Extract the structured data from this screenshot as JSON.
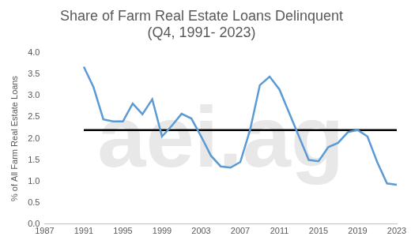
{
  "chart_data": {
    "type": "line",
    "title": "Share of Farm Real Estate Loans Delinquent",
    "subtitle": "(Q4, 1991- 2023)",
    "y_label": "% of All Farm Real Estate Loans",
    "annotations": [
      "aei.ag"
    ],
    "x": [
      1991,
      1992,
      1993,
      1994,
      1995,
      1996,
      1997,
      1998,
      1999,
      2000,
      2001,
      2002,
      2003,
      2004,
      2005,
      2006,
      2007,
      2008,
      2009,
      2010,
      2011,
      2012,
      2013,
      2014,
      2015,
      2016,
      2017,
      2018,
      2019,
      2020,
      2021,
      2022,
      2023
    ],
    "series": [
      {
        "color": "#5b9bd5",
        "line_style": "solid",
        "values": [
          3.68,
          3.2,
          2.45,
          2.4,
          2.4,
          2.82,
          2.57,
          2.92,
          2.05,
          2.3,
          2.58,
          2.47,
          2.05,
          1.6,
          1.35,
          1.32,
          1.45,
          2.2,
          3.25,
          3.45,
          3.15,
          2.6,
          2.05,
          1.5,
          1.47,
          1.8,
          1.9,
          2.15,
          2.2,
          2.05,
          1.45,
          0.95,
          0.92
        ]
      },
      {
        "color": "#000000",
        "line_style": "solid",
        "values": [
          2.2,
          2.2,
          2.2,
          2.2,
          2.2,
          2.2,
          2.2,
          2.2,
          2.2,
          2.2,
          2.2,
          2.2,
          2.2,
          2.2,
          2.2,
          2.2,
          2.2,
          2.2,
          2.2,
          2.2,
          2.2,
          2.2,
          2.2,
          2.2,
          2.2,
          2.2,
          2.2,
          2.2,
          2.2,
          2.2,
          2.2,
          2.2,
          2.2
        ]
      }
    ],
    "xlim": [
      1987,
      2023
    ],
    "xticks": [
      1987,
      1991,
      1995,
      1999,
      2003,
      2007,
      2011,
      2015,
      2019,
      2023
    ],
    "ylim": [
      0,
      4
    ],
    "yticks": [
      {
        "value": 0,
        "label": "0.0"
      },
      0.5,
      {
        "value": 1,
        "label": "1.0"
      },
      1.5,
      {
        "value": 2,
        "label": "2.0"
      },
      2.5,
      {
        "value": 3,
        "label": "3.0"
      },
      3.5,
      {
        "value": 4,
        "label": "4.0"
      }
    ],
    "grid": false
  }
}
